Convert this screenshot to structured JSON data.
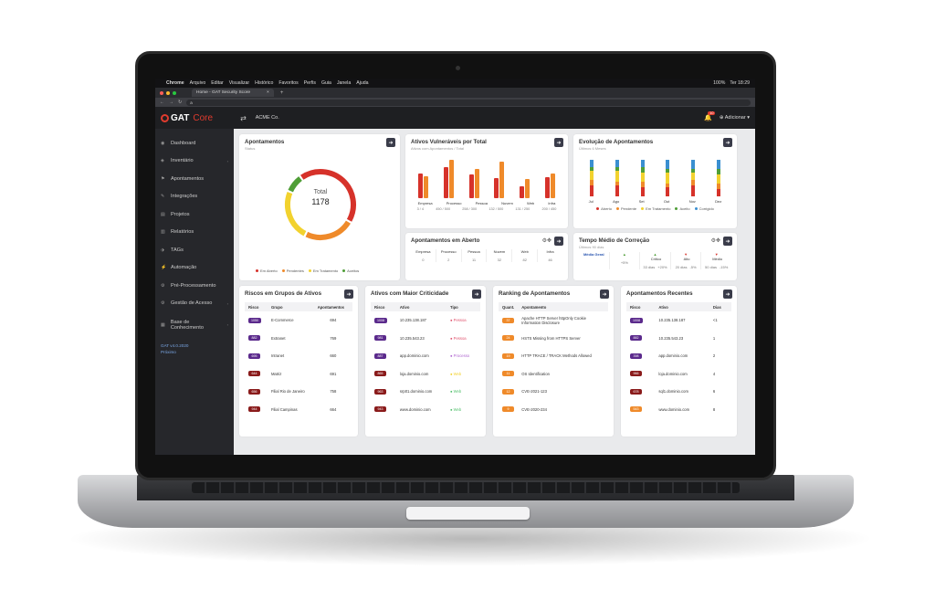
{
  "menubar": {
    "apple": "",
    "app": "Chrome",
    "items": [
      "Arquivo",
      "Editar",
      "Visualizar",
      "Histórico",
      "Favoritos",
      "Perfis",
      "Guia",
      "Janela",
      "Ajuda"
    ],
    "battery": "100%",
    "clock": "Ter 18:29"
  },
  "browser": {
    "tab_title": "Home - GAT Security Score",
    "tab_close": "×",
    "new_tab": "+",
    "url": "a"
  },
  "header": {
    "logo": "GAT",
    "logo_suffix": "Core",
    "company": "ACME Co.",
    "notif_count": "10",
    "add_label": "Adicionar"
  },
  "sidebar": {
    "items": [
      {
        "label": "Dashboard",
        "icon": "◉"
      },
      {
        "label": "Inventário",
        "icon": "◈",
        "chevron": "›"
      },
      {
        "label": "Apontamentos",
        "icon": "⚑"
      },
      {
        "label": "Integrações",
        "icon": "✎"
      },
      {
        "label": "Projetos",
        "icon": "▤"
      },
      {
        "label": "Relatórios",
        "icon": "▥"
      },
      {
        "label": "TAGs",
        "icon": "⬗"
      },
      {
        "label": "Automação",
        "icon": "⚡"
      },
      {
        "label": "Pré-Processamento",
        "icon": "⚙"
      },
      {
        "label": "Gestão de Acesso",
        "icon": "⚙",
        "chevron": "›"
      },
      {
        "label": "Base de Conhecimento",
        "icon": "▦",
        "chevron": "›"
      }
    ],
    "version": "GAT v4.0.2020",
    "version2": "Próximo"
  },
  "apontamentos": {
    "title": "Apontamentos",
    "subtitle": "Status",
    "total_label": "Total",
    "total": "1178",
    "legend": [
      {
        "label": "Em Aberto",
        "color": "#d6322a"
      },
      {
        "label": "Pendentes",
        "color": "#ef8a2a"
      },
      {
        "label": "Em Tratamento",
        "color": "#f2d22e"
      },
      {
        "label": "Aceitos",
        "color": "#4f9e37"
      }
    ],
    "donut": [
      {
        "value": 40,
        "color": "#d6322a"
      },
      {
        "value": 22,
        "color": "#ef8a2a"
      },
      {
        "value": 22,
        "color": "#f2d22e"
      },
      {
        "value": 8,
        "color": "#4f9e37"
      }
    ]
  },
  "vulneraveis": {
    "title": "Ativos Vulneráveis por Total",
    "subtitle": "Ativos com Apontamentos / Total",
    "categories": [
      "Empresa",
      "Processo",
      "Pessoa",
      "Nuvem",
      "Web",
      "Infra"
    ],
    "values": [
      "3 / 4",
      "450 / 500",
      "258 / 300",
      "132 / 500",
      "131 / 250",
      "200 / 450"
    ],
    "red": [
      0.62,
      0.78,
      0.6,
      0.5,
      0.3,
      0.52
    ],
    "orange": [
      0.55,
      0.95,
      0.72,
      0.92,
      0.48,
      0.62
    ]
  },
  "evolucao": {
    "title": "Evolução de Apontamentos",
    "subtitle": "Últimos 6 Meses",
    "months": [
      "Jul",
      "Ago",
      "Set",
      "Out",
      "Nov",
      "Dez"
    ],
    "legend": [
      {
        "label": "Aberto",
        "color": "#d6322a"
      },
      {
        "label": "Pendente",
        "color": "#ef8a2a"
      },
      {
        "label": "Em Tratamento",
        "color": "#f2d22e"
      },
      {
        "label": "Aceito",
        "color": "#4f9e37"
      },
      {
        "label": "Corrigido",
        "color": "#3a8fd1"
      }
    ]
  },
  "emaberto": {
    "title": "Apontamentos em Aberto",
    "cols": [
      {
        "label": "Empresa",
        "value": "0"
      },
      {
        "label": "Processo",
        "value": "2"
      },
      {
        "label": "Pessoa",
        "value": "11"
      },
      {
        "label": "Nuvem",
        "value": "32"
      },
      {
        "label": "Web",
        "value": "82"
      },
      {
        "label": "Infra",
        "value": "46"
      }
    ]
  },
  "tempo": {
    "title": "Tempo Médio de Correção",
    "subtitle": "Últimos 90 dias",
    "media_label": "Média Geral",
    "cols": [
      {
        "label": "Crítico",
        "value": "33 dias",
        "delta": "+20%",
        "up": true
      },
      {
        "label": "Alto",
        "value": "20 dias",
        "delta": "-5%",
        "up": false
      },
      {
        "label": "Médio",
        "value": "50 dias",
        "delta": "-15%",
        "up": false
      }
    ],
    "first_delta": "+5%"
  },
  "riscos_grupos": {
    "title": "Riscos em Grupos de Ativos",
    "headers": [
      "Risco",
      "Grupo",
      "Apontamentos"
    ],
    "rows": [
      [
        "1050",
        "E-Commerce",
        "694",
        "#5b2a8c"
      ],
      [
        "882",
        "Extranet",
        "769",
        "#5b2a8c"
      ],
      [
        "695",
        "Intranet",
        "660",
        "#5b2a8c"
      ],
      [
        "644",
        "Matriz",
        "691",
        "#8a1b1b"
      ],
      [
        "656",
        "Filial Rio de Janeiro",
        "758",
        "#8a1b1b"
      ],
      [
        "944",
        "Filial Campinas",
        "664",
        "#8a1b1b"
      ]
    ]
  },
  "criticidade": {
    "title": "Ativos com Maior Criticidade",
    "headers": [
      "Risco",
      "Ativo",
      "Tipo"
    ],
    "rows": [
      [
        "1008",
        "10.235.138.187",
        "Pessoa",
        "#5b2a8c",
        "#e0556f"
      ],
      [
        "981",
        "10.235.543.23",
        "Pessoa",
        "#5b2a8c",
        "#e0556f"
      ],
      [
        "887",
        "app.dominio.com",
        "Processo",
        "#5b2a8c",
        "#b067d0"
      ],
      [
        "865",
        "loja.dominio.com",
        "Web",
        "#8a1b1b",
        "#f2d22e"
      ],
      [
        "963",
        "srp01.dominio.com",
        "Web",
        "#8a1b1b",
        "#4fbf6a"
      ],
      [
        "943",
        "www.dominio.com",
        "Web",
        "#8a1b1b",
        "#4fbf6a"
      ]
    ]
  },
  "ranking": {
    "title": "Ranking de Apontamentos",
    "headers": [
      "Quant.",
      "Apontamento"
    ],
    "rows": [
      [
        "37",
        "Apache HTTP Server httpOnly Cookie Information Disclosure"
      ],
      [
        "24",
        "HSTS Missing from HTTPS Server"
      ],
      [
        "19",
        "HTTP TRACE / TRACK Methods Allowed"
      ],
      [
        "11",
        "OS Identification"
      ],
      [
        "12",
        "CVE-2021-123"
      ],
      [
        "9",
        "CVE-2020-234"
      ]
    ]
  },
  "recentes": {
    "title": "Apontamentos Recentes",
    "headers": [
      "Risco",
      "Ativo",
      "Dias"
    ],
    "rows": [
      [
        "1008",
        "10.235.138.187",
        "<1",
        "#5b2a8c"
      ],
      [
        "882",
        "10.235.543.23",
        "1",
        "#5b2a8c"
      ],
      [
        "398",
        "app.dominio.com",
        "2",
        "#5b2a8c"
      ],
      [
        "966",
        "loja.dominio.com",
        "4",
        "#8a1b1b"
      ],
      [
        "678",
        "sql1.dominio.com",
        "6",
        "#8a1b1b"
      ],
      [
        "543",
        "www.dominio.com",
        "8",
        "#ef8a2a"
      ]
    ]
  }
}
